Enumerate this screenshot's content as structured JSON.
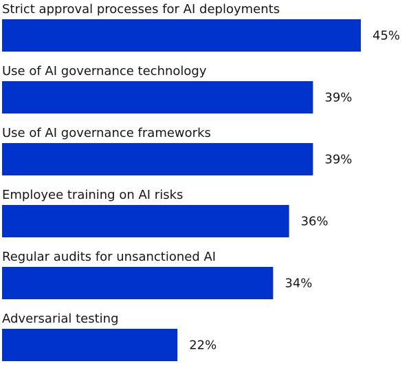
{
  "chart_data": {
    "type": "bar",
    "orientation": "horizontal",
    "categories": [
      "Strict approval processes for AI deployments",
      "Use of AI governance technology",
      "Use of AI governance frameworks",
      "Employee training on AI risks",
      "Regular audits for unsanctioned AI",
      "Adversarial testing"
    ],
    "values": [
      45,
      39,
      39,
      36,
      34,
      22
    ],
    "value_labels": [
      "45%",
      "39%",
      "39%",
      "36%",
      "34%",
      "22%"
    ],
    "color": "#0033cc"
  }
}
